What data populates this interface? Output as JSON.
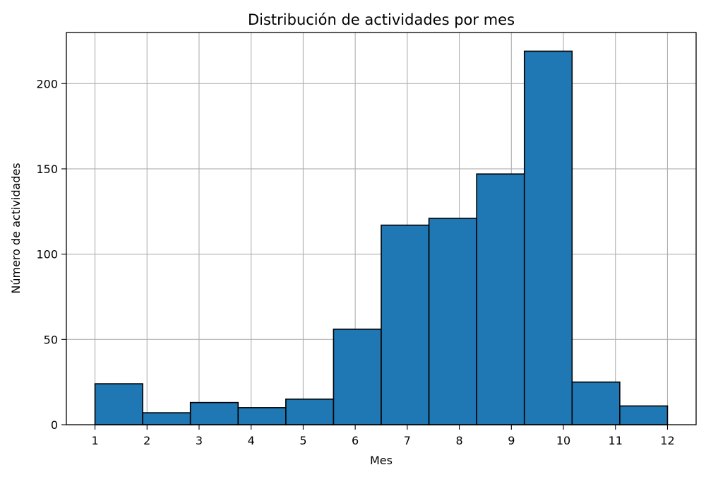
{
  "chart_data": {
    "type": "bar",
    "title": "Distribución de actividades por mes",
    "xlabel": "Mes",
    "ylabel": "Número de actividades",
    "bin_edges": [
      1,
      1.9167,
      2.8333,
      3.75,
      4.6667,
      5.5833,
      6.5,
      7.4167,
      8.3333,
      9.25,
      10.1667,
      11.0833,
      12
    ],
    "values": [
      24,
      7,
      13,
      10,
      15,
      56,
      117,
      121,
      147,
      219,
      25,
      11
    ],
    "xticks": [
      "1",
      "2",
      "3",
      "4",
      "5",
      "6",
      "7",
      "8",
      "9",
      "10",
      "11",
      "12"
    ],
    "yticks": [
      "0",
      "50",
      "100",
      "150",
      "200"
    ],
    "xlim": [
      0.45,
      12.55
    ],
    "ylim": [
      0,
      229.95
    ],
    "grid": true,
    "colors": {
      "bar_fill": "#1f77b4",
      "bar_edge": "#000000",
      "grid": "#b0b0b0"
    }
  }
}
